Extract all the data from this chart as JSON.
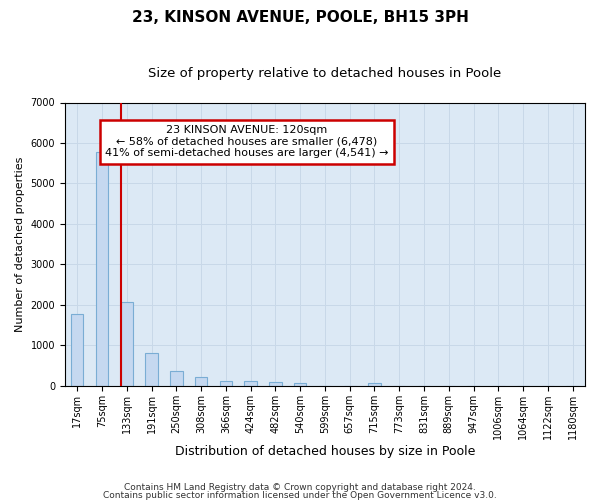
{
  "title1": "23, KINSON AVENUE, POOLE, BH15 3PH",
  "title2": "Size of property relative to detached houses in Poole",
  "xlabel": "Distribution of detached houses by size in Poole",
  "ylabel": "Number of detached properties",
  "bin_labels": [
    "17sqm",
    "75sqm",
    "133sqm",
    "191sqm",
    "250sqm",
    "308sqm",
    "366sqm",
    "424sqm",
    "482sqm",
    "540sqm",
    "599sqm",
    "657sqm",
    "715sqm",
    "773sqm",
    "831sqm",
    "889sqm",
    "947sqm",
    "1006sqm",
    "1064sqm",
    "1122sqm",
    "1180sqm"
  ],
  "bar_values": [
    1780,
    5780,
    2060,
    800,
    360,
    220,
    130,
    115,
    100,
    70,
    0,
    0,
    65,
    0,
    0,
    0,
    0,
    0,
    0,
    0,
    0
  ],
  "bar_color": "#c5d8f0",
  "bar_edge_color": "#7aadd4",
  "vline_color": "#cc0000",
  "annotation_text": "23 KINSON AVENUE: 120sqm\n← 58% of detached houses are smaller (6,478)\n41% of semi-detached houses are larger (4,541) →",
  "annotation_box_color": "#ffffff",
  "annotation_box_edge": "#cc0000",
  "ylim": [
    0,
    7000
  ],
  "yticks": [
    0,
    1000,
    2000,
    3000,
    4000,
    5000,
    6000,
    7000
  ],
  "grid_color": "#c8d8e8",
  "bg_color": "#dce9f5",
  "footer1": "Contains HM Land Registry data © Crown copyright and database right 2024.",
  "footer2": "Contains public sector information licensed under the Open Government Licence v3.0.",
  "title1_fontsize": 11,
  "title2_fontsize": 9.5,
  "xlabel_fontsize": 9,
  "ylabel_fontsize": 8,
  "tick_fontsize": 7,
  "annotation_fontsize": 8,
  "footer_fontsize": 6.5,
  "bar_width": 0.5,
  "vline_bin_index": 2
}
